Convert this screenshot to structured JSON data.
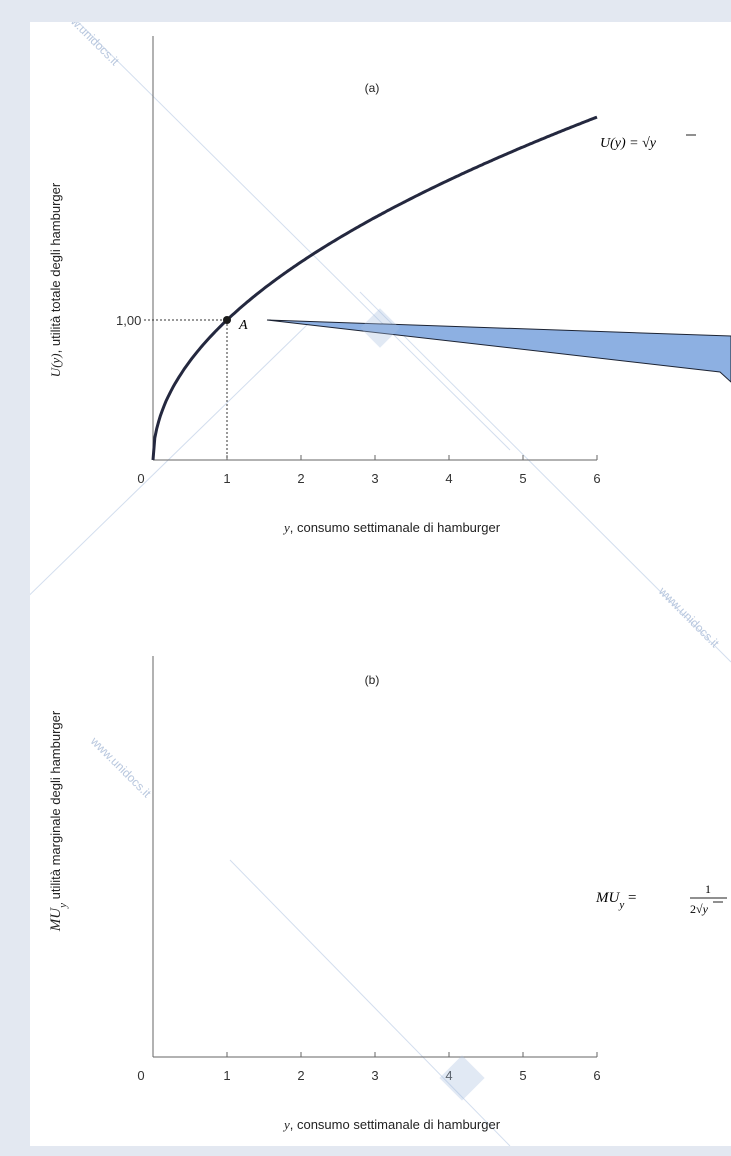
{
  "watermark": "www.unidocs.it",
  "colors": {
    "curve": "#24283f",
    "callout": "#8db0e2",
    "callout_stroke": "#1c2333",
    "background": "#e3e8f1"
  },
  "chart_data": [
    {
      "panel": "(a)",
      "type": "line",
      "xlabel": "y, consumo settimanale di hamburger",
      "xlabel_var": "y",
      "xlabel_rest": ", consumo settimanale di hamburger",
      "ylabel": "U(y), utilità totale degli hamburger",
      "ylabel_var": "U(y)",
      "ylabel_rest": ", utilità totale degli hamburger",
      "x_ticks": [
        "0",
        "1",
        "2",
        "3",
        "4",
        "5",
        "6"
      ],
      "xlim": [
        0,
        6
      ],
      "y_tick_label": "1,00",
      "y_tick_value": 1.0,
      "series": [
        {
          "name": "U(y) = √y",
          "function": "sqrt",
          "x": [
            0,
            0.25,
            1,
            2,
            3,
            4,
            5,
            6
          ],
          "y": [
            0,
            0.5,
            1,
            1.414,
            1.732,
            2,
            2.236,
            2.449
          ]
        }
      ],
      "curve_label": {
        "lhs": "U(y) = ",
        "arg": "y"
      },
      "point": {
        "label": "A",
        "x": 1,
        "y": 1.0
      },
      "callout": true
    },
    {
      "panel": "(b)",
      "type": "line",
      "xlabel": "y, consumo settimanale di hamburger",
      "xlabel_var": "y",
      "xlabel_rest": ", consumo settimanale di hamburger",
      "ylabel": "MUy utilità marginale degli hamburger",
      "ylabel_var": "MU",
      "ylabel_sub": "y",
      "ylabel_rest": " utilità marginale degli hamburger",
      "x_ticks": [
        "0",
        "1",
        "2",
        "3",
        "4",
        "5",
        "6"
      ],
      "xlim": [
        0,
        6
      ],
      "series": [],
      "curve_label": {
        "lhs_var": "MU",
        "lhs_sub": "y",
        "eq": " = ",
        "numerator": "1",
        "denominator_prefix": "2",
        "denominator_arg": "y"
      }
    }
  ]
}
